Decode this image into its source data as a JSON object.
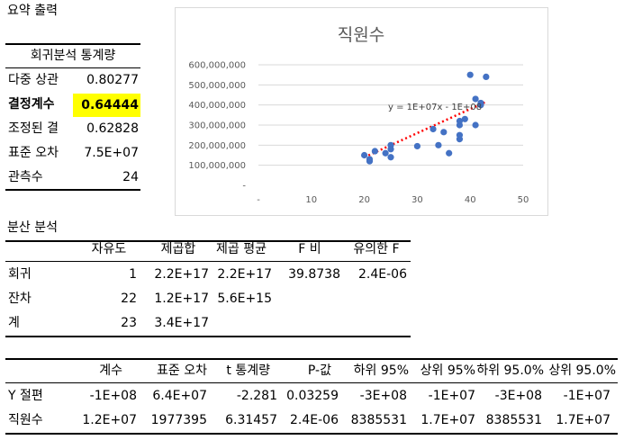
{
  "summary": {
    "title": "요약 출력",
    "stats_header": "회귀분석 통계량",
    "rows": [
      {
        "label": "다중 상관",
        "value": "0.80277"
      },
      {
        "label": "결정계수",
        "value": "0.64444"
      },
      {
        "label": "조정된 결",
        "value": "0.62828"
      },
      {
        "label": "표준 오차",
        "value": "7.5E+07"
      },
      {
        "label": "관측수",
        "value": "24"
      }
    ]
  },
  "anova": {
    "title": "분산 분석",
    "headers": [
      "자유도",
      "제곱합",
      "제곱 평균",
      "F 비",
      "유의한 F"
    ],
    "rows": [
      {
        "label": "회귀",
        "cells": [
          "1",
          "2.2E+17",
          "2.2E+17",
          "39.8738",
          "2.4E-06"
        ]
      },
      {
        "label": "잔차",
        "cells": [
          "22",
          "1.2E+17",
          "5.6E+15",
          "",
          ""
        ]
      },
      {
        "label": "계",
        "cells": [
          "23",
          "3.4E+17",
          "",
          "",
          ""
        ]
      }
    ]
  },
  "coef": {
    "headers": [
      "계수",
      "표준 오차",
      "t 통계량",
      "P-값",
      "하위 95%",
      "상위 95%",
      "하위 95.0%",
      "상위 95.0%"
    ],
    "rows": [
      {
        "label": "Y 절편",
        "cells": [
          "-1E+08",
          "6.4E+07",
          "-2.281",
          "0.03259",
          "-3E+08",
          "-1E+07",
          "-3E+08",
          "-1E+07"
        ]
      },
      {
        "label": "직원수",
        "cells": [
          "1.2E+07",
          "1977395",
          "6.31457",
          "2.4E-06",
          "8385531",
          "1.7E+07",
          "8385531",
          "1.7E+07"
        ]
      }
    ]
  },
  "colors": {
    "highlight": "#ffff00",
    "point": "#4472c4",
    "trendline": "#ff0000",
    "grid": "#d9d9d9"
  },
  "chart_data": {
    "type": "scatter",
    "title": "직원수",
    "xlabel": "",
    "ylabel": "",
    "xlim": [
      0,
      50
    ],
    "ylim": [
      0,
      600000000
    ],
    "x_ticks": [
      "-",
      "10",
      "20",
      "30",
      "40",
      "50"
    ],
    "y_ticks": [
      "-",
      "100,000,000",
      "200,000,000",
      "300,000,000",
      "400,000,000",
      "500,000,000",
      "600,000,000"
    ],
    "grid": "horizontal",
    "trendline": {
      "label": "y = 1E+07x - 1E+08",
      "slope": 12000000,
      "intercept": -100000000,
      "x_range": [
        20,
        43
      ]
    },
    "points": [
      [
        20,
        150000000
      ],
      [
        21,
        120000000
      ],
      [
        21,
        130000000
      ],
      [
        22,
        170000000
      ],
      [
        24,
        160000000
      ],
      [
        25,
        140000000
      ],
      [
        25,
        180000000
      ],
      [
        25,
        200000000
      ],
      [
        30,
        195000000
      ],
      [
        33,
        280000000
      ],
      [
        34,
        200000000
      ],
      [
        35,
        265000000
      ],
      [
        36,
        160000000
      ],
      [
        38,
        230000000
      ],
      [
        38,
        250000000
      ],
      [
        38,
        300000000
      ],
      [
        38,
        320000000
      ],
      [
        39,
        330000000
      ],
      [
        40,
        550000000
      ],
      [
        41,
        300000000
      ],
      [
        41,
        430000000
      ],
      [
        42,
        400000000
      ],
      [
        43,
        540000000
      ],
      [
        42,
        410000000
      ]
    ]
  }
}
